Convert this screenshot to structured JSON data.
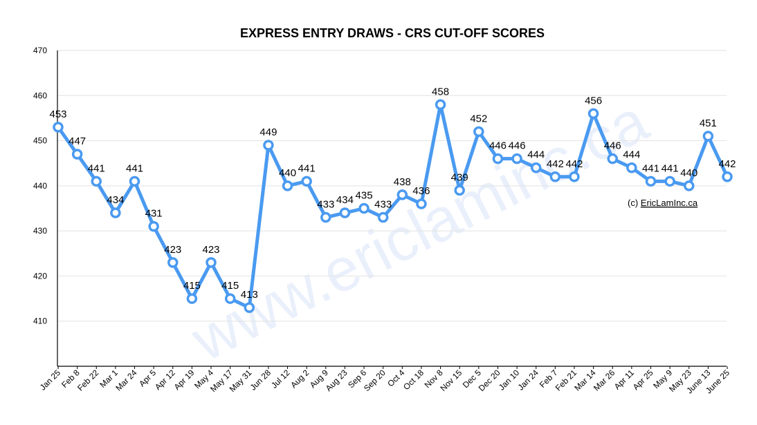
{
  "chart_data": {
    "type": "line",
    "title": "EXPRESS ENTRY DRAWS - CRS CUT-OFF SCORES",
    "xlabel": "",
    "ylabel": "",
    "categories": [
      "Jan 25",
      "Feb 8",
      "Feb 22",
      "Mar 1",
      "Mar 24",
      "Apr 5",
      "Apr 12",
      "Apr 19",
      "May 4",
      "May 17",
      "May 31",
      "Jun 28",
      "Jul 12",
      "Aug 2",
      "Aug 9",
      "Aug 23",
      "Sep 6",
      "Sep 20",
      "Oct 4",
      "Oct 18",
      "Nov 8",
      "Nov 15",
      "Dec 5",
      "Dec 20",
      "Jan 10",
      "Jan 24",
      "Feb 7",
      "Feb 21",
      "Mar 14",
      "Mar 26",
      "Apr 11",
      "Apr 25",
      "May 9",
      "May 23",
      "June 13",
      "June 25"
    ],
    "values": [
      453,
      447,
      441,
      434,
      441,
      431,
      423,
      415,
      423,
      415,
      413,
      449,
      440,
      441,
      433,
      434,
      435,
      433,
      438,
      436,
      458,
      439,
      452,
      446,
      446,
      444,
      442,
      442,
      456,
      446,
      444,
      441,
      441,
      440,
      451,
      442
    ],
    "ylim": [
      400,
      470
    ],
    "yticks": [
      "410",
      "420",
      "430",
      "440",
      "450",
      "460",
      "470"
    ],
    "grid": true,
    "series_color": "#4a9af0",
    "credit_prefix": "(c) ",
    "credit_link": "EricLamInc.ca",
    "watermark": "www.ericlaminc.ca"
  }
}
